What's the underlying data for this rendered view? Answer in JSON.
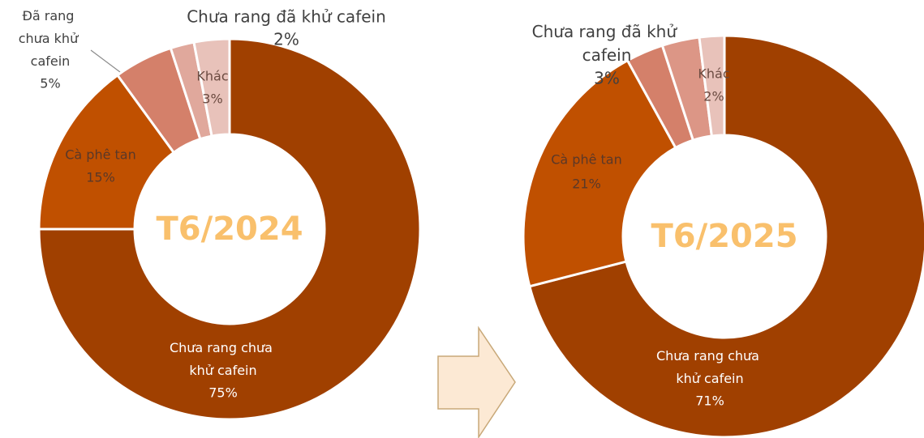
{
  "chart_data": [
    {
      "type": "pie",
      "donut": true,
      "title": "T6/2024",
      "categories": [
        "Chưa rang chưa khử cafein",
        "Cà phê tan",
        "Đã rang chưa khử cafein",
        "Chưa rang đã khử cafein",
        "Khác"
      ],
      "values": [
        75,
        15,
        5,
        2,
        3
      ],
      "value_labels": [
        "75%",
        "15%",
        "5%",
        "2%",
        "3%"
      ],
      "colors": [
        "#a04000",
        "#c05000",
        "#d4806a",
        "#e0a89c",
        "#e8c2ba"
      ]
    },
    {
      "type": "pie",
      "donut": true,
      "title": "T6/2025",
      "categories": [
        "Chưa rang chưa khử cafein",
        "Cà phê tan",
        null,
        "Chưa rang đã khử cafein",
        "Khác"
      ],
      "values": [
        71,
        21,
        3,
        3,
        2
      ],
      "value_labels": [
        "71%",
        "21%",
        null,
        "3%",
        "2%"
      ],
      "colors": [
        "#a04000",
        "#c05000",
        "#d4806a",
        "#dc9686",
        "#e8c2ba"
      ]
    }
  ]
}
